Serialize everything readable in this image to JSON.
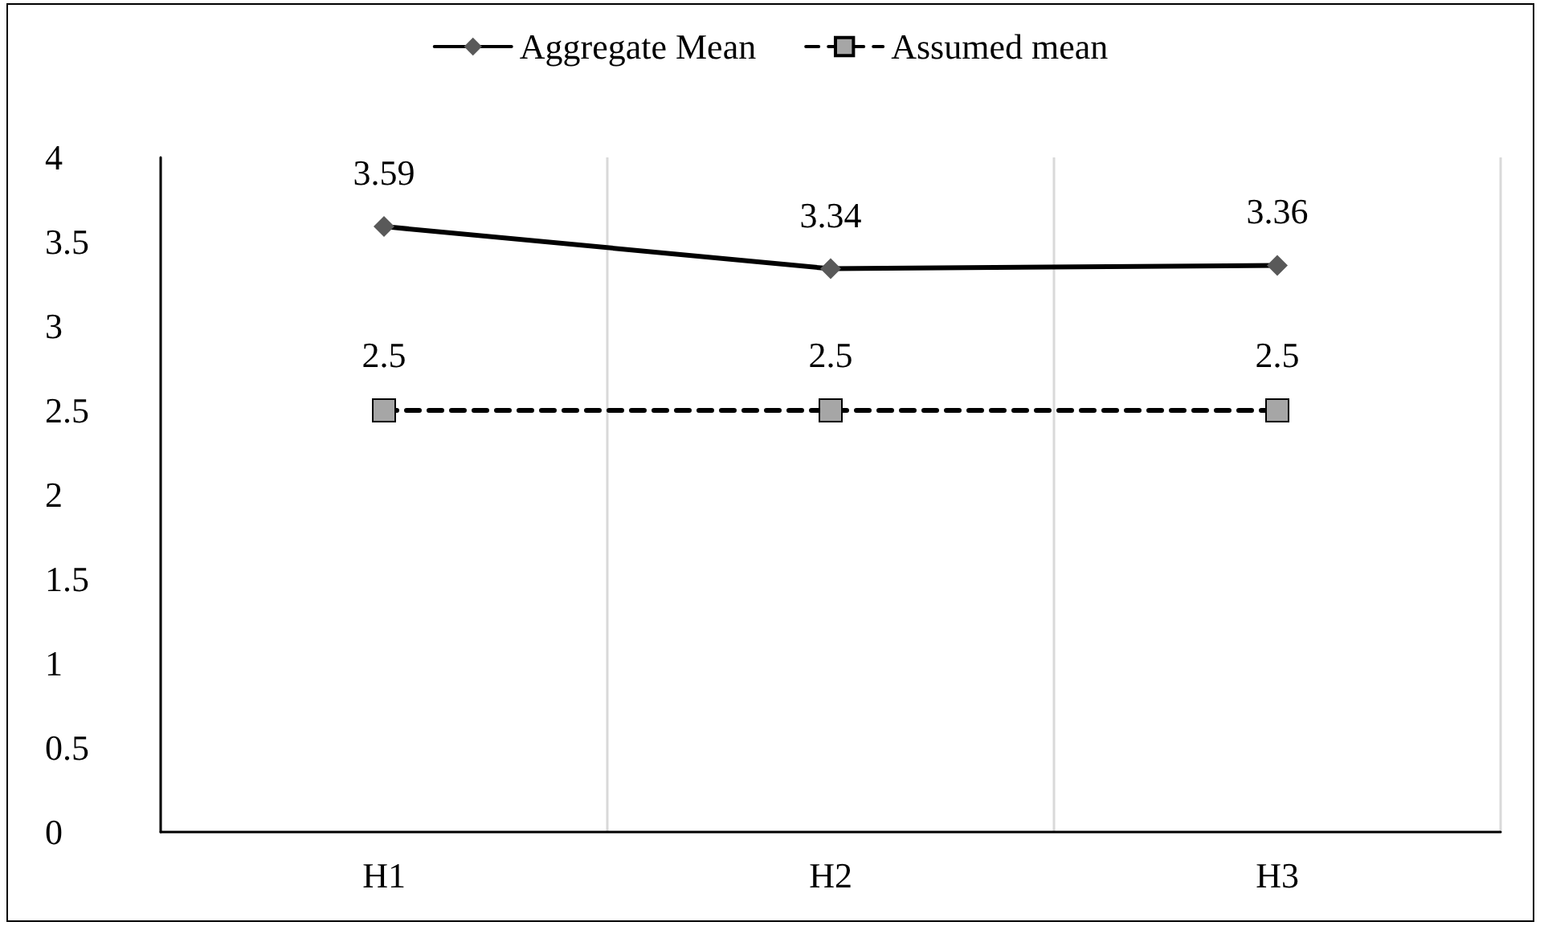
{
  "chart_data": {
    "type": "line",
    "categories": [
      "H1",
      "H2",
      "H3"
    ],
    "series": [
      {
        "name": "Aggregate Mean",
        "color": "#000000",
        "marker": "diamond",
        "line_style": "solid",
        "values": [
          3.59,
          3.34,
          3.36
        ]
      },
      {
        "name": "Assumed mean",
        "color": "#000000",
        "marker": "square",
        "line_style": "dashed",
        "values": [
          2.5,
          2.5,
          2.5
        ]
      }
    ],
    "ylim": [
      0,
      4
    ],
    "yticks": [
      0,
      0.5,
      1,
      1.5,
      2,
      2.5,
      3,
      3.5,
      4
    ],
    "grid": "x",
    "legend": "top",
    "data_labels": true
  }
}
